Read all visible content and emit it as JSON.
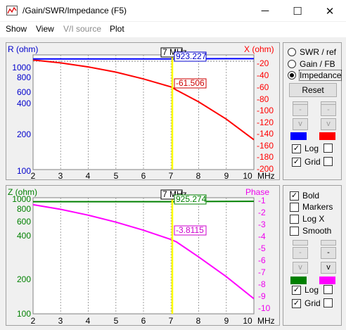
{
  "window": {
    "title": "/Gain/SWR/Impedance (F5)",
    "minimize_glyph": "─",
    "maximize_glyph": "☐",
    "close_glyph": "✕"
  },
  "menu": {
    "show": "Show",
    "view": "View",
    "vi_source": "V/I source",
    "plot": "Plot"
  },
  "top_chart": {
    "left_title": "R (ohm)",
    "right_title": "X (ohm)",
    "left_ticks": [
      "1000",
      "800",
      "600",
      "400",
      "200",
      "100"
    ],
    "right_ticks": [
      "-20",
      "-40",
      "-60",
      "-80",
      "-100",
      "-120",
      "-140",
      "-160",
      "-180",
      "-200"
    ],
    "x_ticks": [
      "2",
      "3",
      "4",
      "5",
      "6",
      "7",
      "8",
      "9",
      "10"
    ],
    "x_unit": "MHz",
    "cursor_label": "7 MHz",
    "r_readout": "923.227",
    "x_readout": "-61.506"
  },
  "bottom_chart": {
    "left_title": "Z (ohm)",
    "right_title": "Phase",
    "left_ticks": [
      "1000",
      "800",
      "600",
      "400",
      "200",
      "100"
    ],
    "right_ticks": [
      "-1",
      "-2",
      "-3",
      "-4",
      "-5",
      "-6",
      "-7",
      "-8",
      "-9",
      "-10"
    ],
    "x_ticks": [
      "2",
      "3",
      "4",
      "5",
      "6",
      "7",
      "8",
      "9",
      "10"
    ],
    "x_unit": "MHz",
    "cursor_label": "7 MHz",
    "z_readout": "925.274",
    "phase_readout": "-3.8115"
  },
  "chart_data": [
    {
      "type": "line",
      "x": [
        2,
        3,
        4,
        5,
        6,
        7,
        7.2,
        8,
        9,
        10
      ],
      "xlim": [
        2,
        10
      ],
      "ylim_left": [
        100,
        1000
      ],
      "ylim_right": [
        -200,
        0
      ],
      "grid": true,
      "left_log_scale": true,
      "series": [
        {
          "axis": "left",
          "color": "#0000ff",
          "values": [
            923,
            923,
            923,
            923,
            923,
            923,
            923.227,
            925,
            926,
            927
          ]
        },
        {
          "axis": "right",
          "color": "#ff0000",
          "values": [
            -9,
            -14,
            -21,
            -30,
            -42,
            -56,
            -61.506,
            -82,
            -112,
            -148
          ]
        }
      ]
    },
    {
      "type": "line",
      "x": [
        2,
        3,
        4,
        5,
        6,
        7,
        7.2,
        8,
        9,
        10
      ],
      "xlim": [
        2,
        10
      ],
      "ylim_left": [
        100,
        1000
      ],
      "ylim_right": [
        -10,
        0
      ],
      "grid": true,
      "left_log_scale": true,
      "series": [
        {
          "axis": "left",
          "color": "#008000",
          "values": [
            925,
            925,
            925,
            925,
            925,
            925,
            925.274,
            927,
            929,
            931
          ]
        },
        {
          "axis": "right",
          "color": "#ff00ff",
          "values": [
            -0.6,
            -1.0,
            -1.5,
            -2.1,
            -2.8,
            -3.6,
            -3.8115,
            -5.1,
            -6.8,
            -8.7
          ]
        }
      ]
    }
  ],
  "panel_top": {
    "swr_label": "SWR / ref",
    "gain_label": "Gain / FB",
    "impedance_label": "Impedance",
    "reset_label": "Reset",
    "up_glyph": "-",
    "down_glyph": "v",
    "swatch_left_color": "#0000ff",
    "swatch_right_color": "#ff0000",
    "log_label": "Log",
    "grid_label": "Grid"
  },
  "panel_bottom": {
    "bold_label": "Bold",
    "markers_label": "Markers",
    "logx_label": "Log X",
    "smooth_label": "Smooth",
    "up_glyph": "-",
    "down_glyph": "v",
    "swatch_left_color": "#008000",
    "swatch_right_color": "#ff00ff",
    "log_label": "Log",
    "grid_label": "Grid"
  }
}
